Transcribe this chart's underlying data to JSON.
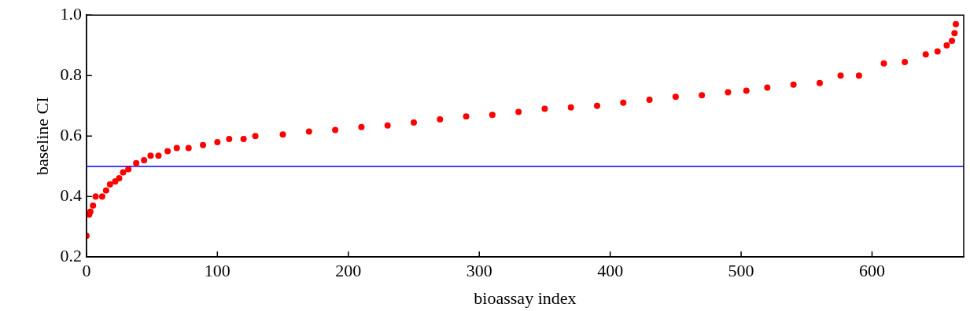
{
  "chart_data": {
    "type": "scatter",
    "xlabel": "bioassay index",
    "ylabel": "baseline CI",
    "marker": "circle",
    "grid": false,
    "legend": false,
    "xlim": [
      0,
      670
    ],
    "ylim": [
      0.2,
      1.0
    ],
    "xticks": [
      0,
      100,
      200,
      300,
      400,
      500,
      600
    ],
    "yticks": [
      0.2,
      0.4,
      0.6,
      0.8,
      {
        "value": 1.0,
        "label": "1.0"
      }
    ],
    "series": [
      {
        "color": "#ff0000",
        "x": [
          0,
          2,
          3,
          5,
          7,
          12,
          15,
          18,
          22,
          25,
          28,
          32,
          38,
          44,
          49,
          55,
          62,
          69,
          78,
          89,
          100,
          109,
          120,
          129,
          150,
          170,
          190,
          210,
          230,
          250,
          270,
          290,
          310,
          330,
          350,
          370,
          390,
          410,
          430,
          450,
          470,
          490,
          504,
          520,
          540,
          560,
          576,
          590,
          609,
          625,
          641,
          650,
          657,
          661,
          663,
          664
        ],
        "values": [
          0.27,
          0.34,
          0.35,
          0.37,
          0.4,
          0.4,
          0.42,
          0.44,
          0.45,
          0.46,
          0.48,
          0.49,
          0.51,
          0.52,
          0.535,
          0.535,
          0.55,
          0.56,
          0.56,
          0.57,
          0.58,
          0.59,
          0.59,
          0.6,
          0.605,
          0.615,
          0.62,
          0.63,
          0.635,
          0.645,
          0.655,
          0.665,
          0.67,
          0.68,
          0.69,
          0.695,
          0.7,
          0.71,
          0.72,
          0.73,
          0.735,
          0.745,
          0.75,
          0.76,
          0.77,
          0.775,
          0.8,
          0.8,
          0.84,
          0.845,
          0.87,
          0.88,
          0.9,
          0.915,
          0.94,
          0.97
        ]
      }
    ],
    "ref_lines": [
      {
        "axis": "y",
        "value": 0.5,
        "color": "#0000ff"
      }
    ]
  }
}
